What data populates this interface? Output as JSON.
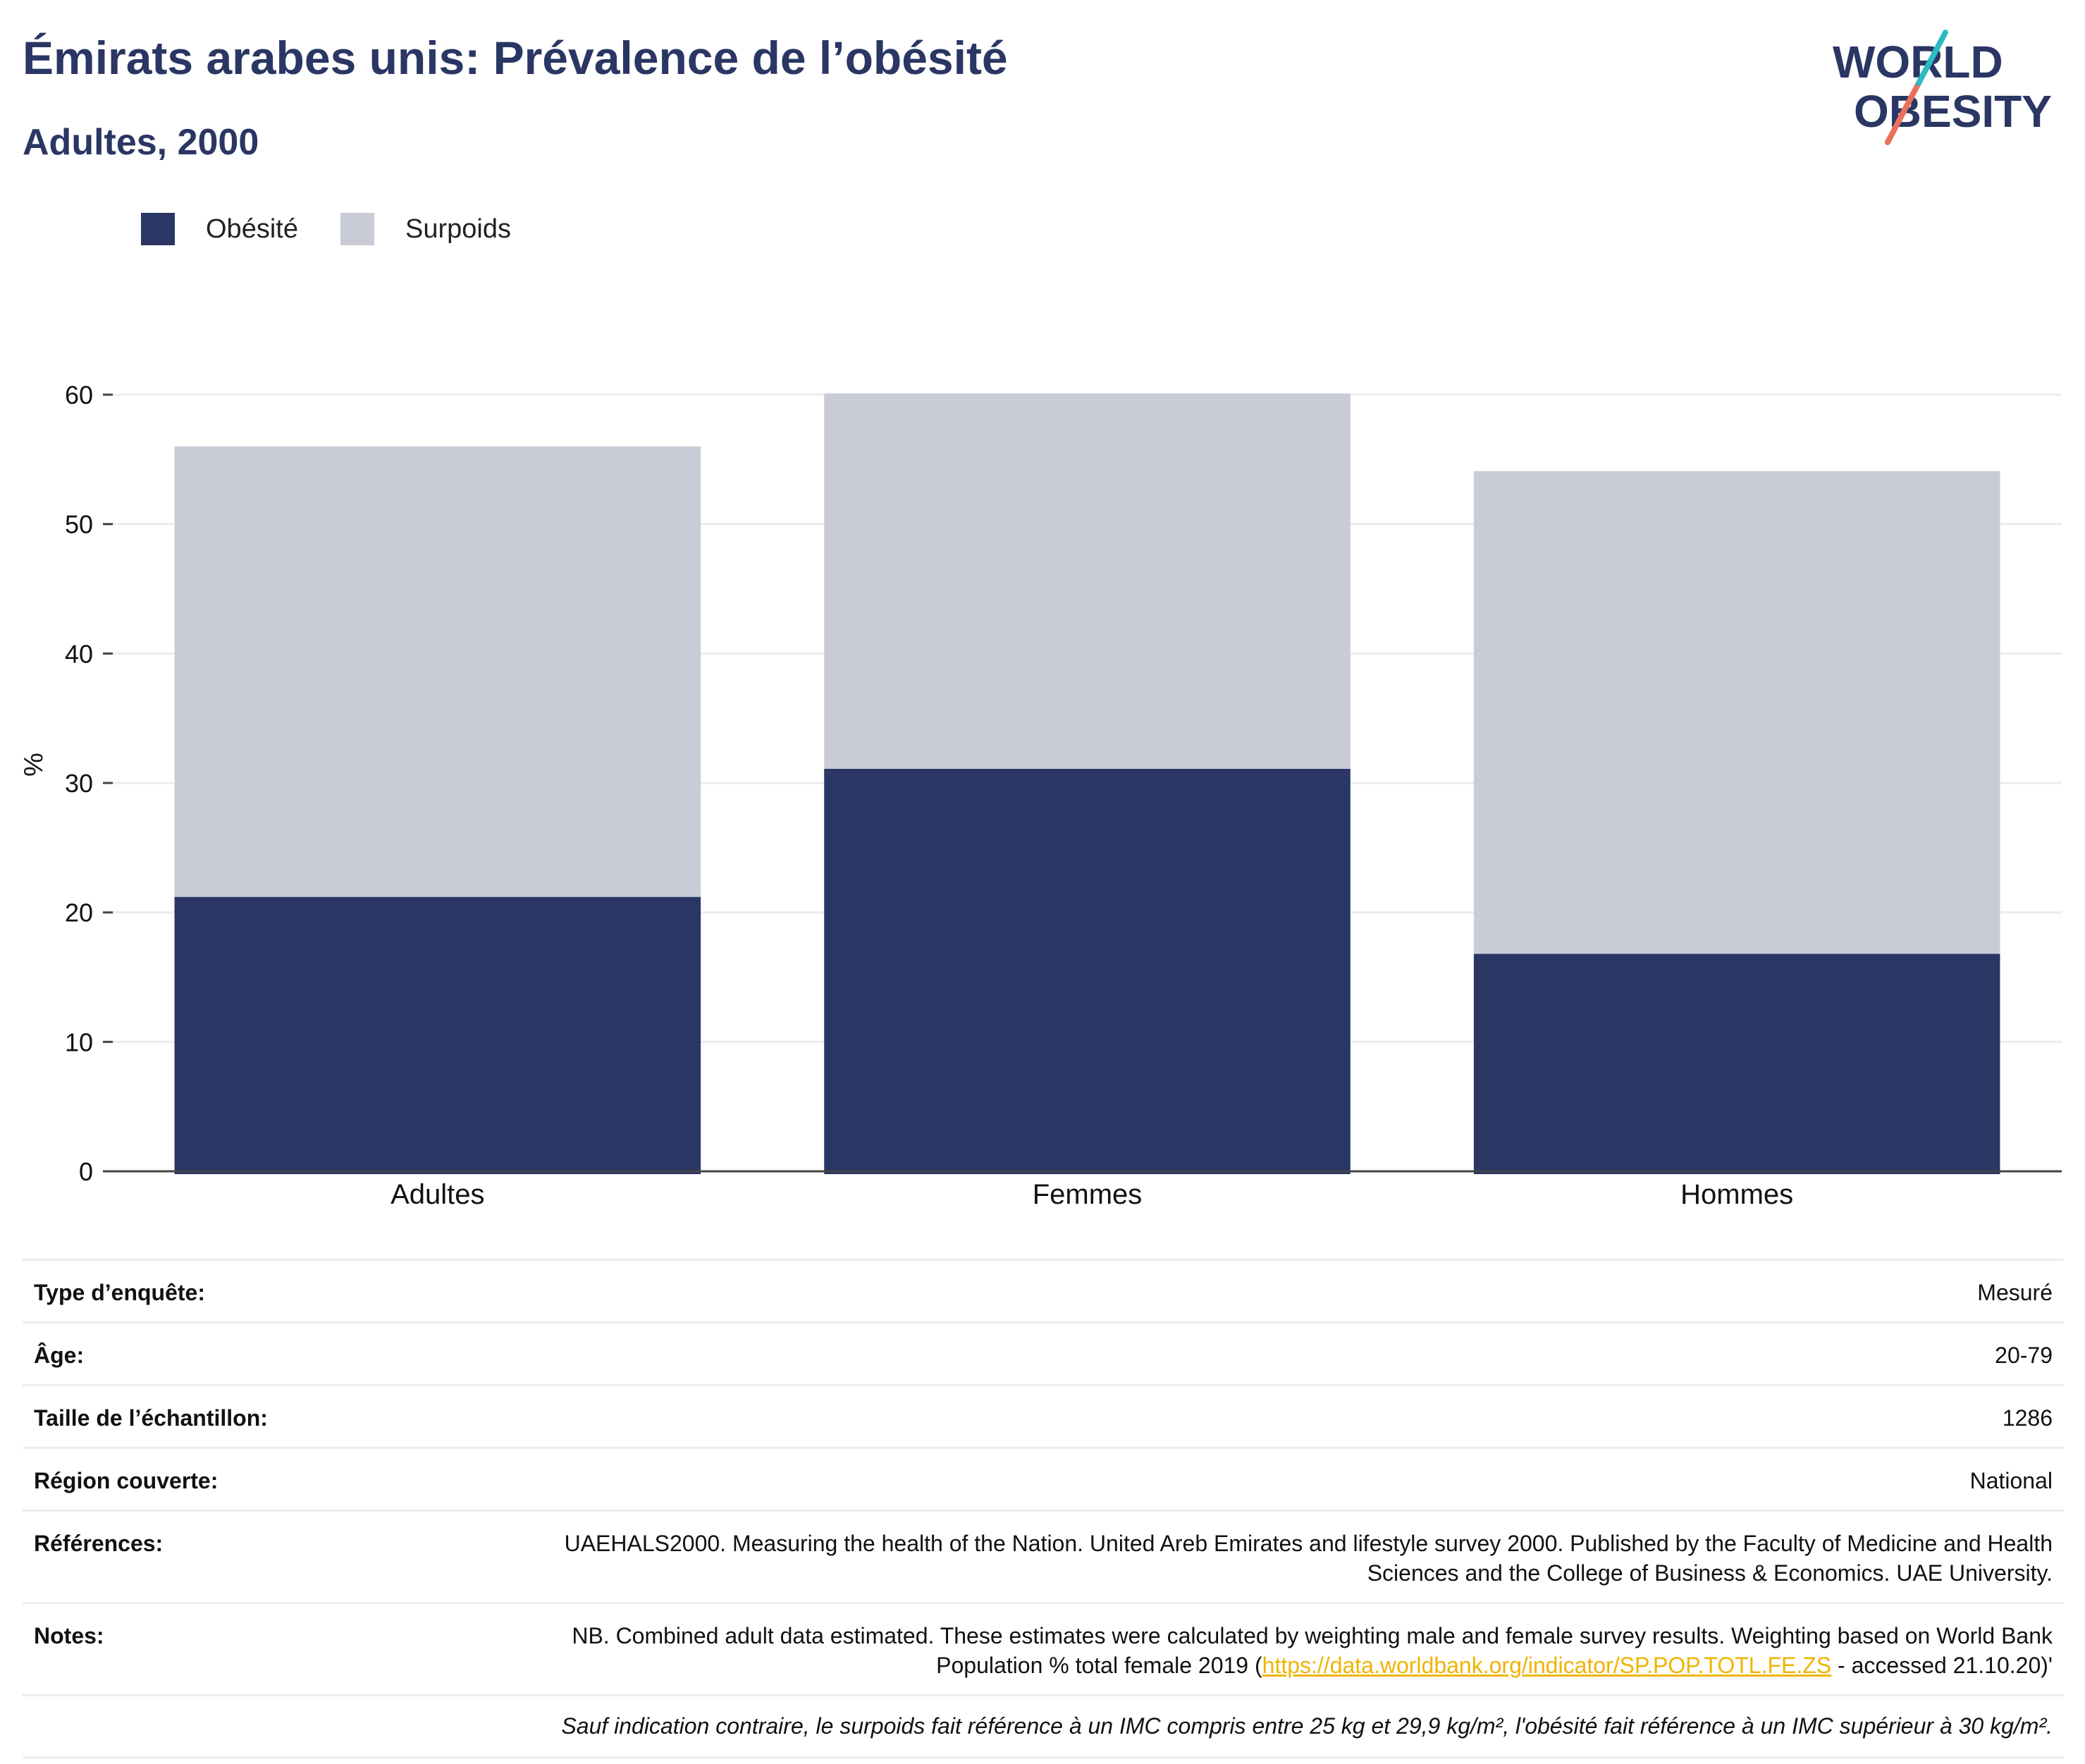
{
  "header": {
    "title": "Émirats arabes unis: Prévalence de l’obésité",
    "subtitle": "Adultes, 2000"
  },
  "logo": {
    "line1": "WORLD",
    "line2": "OBESITY",
    "colors": {
      "text": "#2a3663",
      "accent_teal": "#2fb9c4",
      "accent_coral": "#e9705a"
    }
  },
  "legend": {
    "items": [
      {
        "label": "Obésité",
        "color": "#2a3663"
      },
      {
        "label": "Surpoids",
        "color": "#c9cbd7"
      }
    ]
  },
  "chart_data": {
    "type": "bar",
    "stacked": true,
    "categories": [
      "Adultes",
      "Femmes",
      "Hommes"
    ],
    "series": [
      {
        "name": "Obésité",
        "color": "#2a3663",
        "values": [
          21.2,
          31.1,
          16.8
        ]
      },
      {
        "name": "Surpoids",
        "color": "#c9cbd7",
        "values": [
          34.8,
          29.0,
          37.3
        ]
      }
    ],
    "ylabel": "%",
    "xlabel": "",
    "ylim": [
      0,
      60
    ],
    "yticks": [
      "0",
      "10",
      "20",
      "30",
      "40",
      "50",
      "60"
    ],
    "grid": true,
    "legend_position": "top-left"
  },
  "info": {
    "rows": [
      {
        "label": "Type d’enquête:",
        "value": "Mesuré"
      },
      {
        "label": "Âge:",
        "value": "20-79"
      },
      {
        "label": "Taille de l’échantillon:",
        "value": "1286"
      },
      {
        "label": "Région couverte:",
        "value": "National"
      },
      {
        "label": "Références:",
        "value": "UAEHALS2000. Measuring the health of the Nation. United Areb Emirates and lifestyle survey 2000. Published by the Faculty of Medicine and Health Sciences and the College of Business & Economics. UAE University."
      }
    ],
    "notes": {
      "label": "Notes:",
      "before": "NB. Combined adult data estimated. These estimates were calculated by weighting male and female survey results. Weighting based on World Bank Population % total female 2019 (",
      "link": "https://data.worldbank.org/indicator/SP.POP.TOTL.FE.ZS",
      "after": " - accessed 21.10.20)'"
    },
    "footnote": "Sauf indication contraire, le surpoids fait référence à un IMC compris entre 25 kg et 29,9 kg/m², l'obésité fait référence à un IMC supérieur à 30 kg/m²."
  }
}
